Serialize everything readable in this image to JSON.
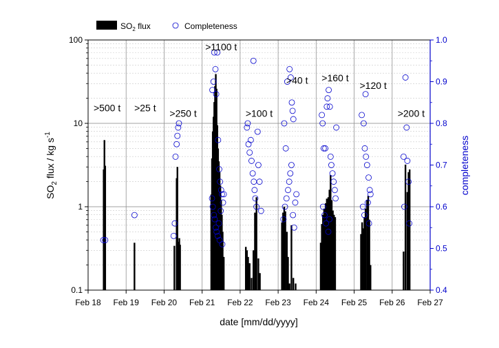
{
  "chart_data": {
    "type": "bar",
    "xlabel": "date [mm/dd/yyyy]",
    "ylabel": {
      "base": "SO",
      "sub": "2",
      "rest": " flux / kg s",
      "sup": "-1"
    },
    "y2label": "completeness",
    "yscale": "log",
    "ylim": [
      0.1,
      100
    ],
    "y2lim": [
      0.4,
      1.0
    ],
    "xlim": [
      "Feb 18",
      "Feb 27"
    ],
    "x_ticks": [
      "Feb 18",
      "Feb 19",
      "Feb 20",
      "Feb 21",
      "Feb 22",
      "Feb 23",
      "Feb 24",
      "Feb 25",
      "Feb 26",
      "Feb 27"
    ],
    "y_ticks": [
      "0.1",
      "1",
      "10",
      "100"
    ],
    "y2_ticks": [
      "0.4",
      "0.5",
      "0.6",
      "0.7",
      "0.8",
      "0.9",
      "1.0"
    ],
    "grid": true,
    "legend": {
      "placement": "top-left",
      "entries": [
        {
          "label_base": "SO",
          "label_sub": "2",
          "label_rest": " flux",
          "marker": "bar"
        },
        {
          "label": "Completeness",
          "marker": "circle"
        }
      ]
    },
    "daily_totals": [
      {
        "day": "Feb 18",
        "label": ">500 t"
      },
      {
        "day": "Feb 19",
        "label": ">25 t"
      },
      {
        "day": "Feb 20",
        "label": ">250 t"
      },
      {
        "day": "Feb 21",
        "label": ">1100 t"
      },
      {
        "day": "Feb 22",
        "label": ">100 t"
      },
      {
        "day": "Feb 23",
        "label": ">40 t"
      },
      {
        "day": "Feb 24",
        "label": ">160 t"
      },
      {
        "day": "Feb 25",
        "label": ">120 t"
      },
      {
        "day": "Feb 26",
        "label": ">200 t"
      }
    ],
    "series": [
      {
        "name": "SO2 flux",
        "color": "#000000",
        "points": [
          [
            18.41,
            2.8
          ],
          [
            18.43,
            6.3
          ],
          [
            18.45,
            3.1
          ],
          [
            19.22,
            0.37
          ],
          [
            20.27,
            0.34
          ],
          [
            20.33,
            2.2
          ],
          [
            20.35,
            3.0
          ],
          [
            20.37,
            0.38
          ],
          [
            20.4,
            0.42
          ],
          [
            20.42,
            0.35
          ],
          [
            21.24,
            1.4
          ],
          [
            21.26,
            3.8
          ],
          [
            21.28,
            8.0
          ],
          [
            21.3,
            12.0
          ],
          [
            21.32,
            18.0
          ],
          [
            21.34,
            28.0
          ],
          [
            21.36,
            39.0
          ],
          [
            21.38,
            26.0
          ],
          [
            21.4,
            9.5
          ],
          [
            21.42,
            5.0
          ],
          [
            21.44,
            3.5
          ],
          [
            21.46,
            2.6
          ],
          [
            21.48,
            1.8
          ],
          [
            21.5,
            1.2
          ],
          [
            21.52,
            0.8
          ],
          [
            21.54,
            0.5
          ],
          [
            21.57,
            0.25
          ],
          [
            22.15,
            0.33
          ],
          [
            22.18,
            0.3
          ],
          [
            22.21,
            0.25
          ],
          [
            22.25,
            0.21
          ],
          [
            22.3,
            0.14
          ],
          [
            22.35,
            0.3
          ],
          [
            22.39,
            0.85
          ],
          [
            22.43,
            1.3
          ],
          [
            22.48,
            0.24
          ],
          [
            22.52,
            0.16
          ],
          [
            23.1,
            0.65
          ],
          [
            23.13,
            0.85
          ],
          [
            23.16,
            1.0
          ],
          [
            23.19,
            0.88
          ],
          [
            23.23,
            0.5
          ],
          [
            23.26,
            0.25
          ],
          [
            23.3,
            0.12
          ],
          [
            23.35,
            0.6
          ],
          [
            23.4,
            0.14
          ],
          [
            23.46,
            0.12
          ],
          [
            24.12,
            0.37
          ],
          [
            24.15,
            0.62
          ],
          [
            24.18,
            0.8
          ],
          [
            24.21,
            0.95
          ],
          [
            24.25,
            1.1
          ],
          [
            24.28,
            1.25
          ],
          [
            24.32,
            1.3
          ],
          [
            24.35,
            1.6
          ],
          [
            24.38,
            2.4
          ],
          [
            24.41,
            1.2
          ],
          [
            24.44,
            0.9
          ],
          [
            24.47,
            0.8
          ],
          [
            24.5,
            0.75
          ],
          [
            25.18,
            0.47
          ],
          [
            25.21,
            0.65
          ],
          [
            25.24,
            0.55
          ],
          [
            25.27,
            0.75
          ],
          [
            25.3,
            0.95
          ],
          [
            25.34,
            1.2
          ],
          [
            25.37,
            1.35
          ],
          [
            25.4,
            0.7
          ],
          [
            25.43,
            0.2
          ],
          [
            26.3,
            0.29
          ],
          [
            26.35,
            3.2
          ],
          [
            26.4,
            1.5
          ],
          [
            26.43,
            2.6
          ],
          [
            26.46,
            2.8
          ]
        ]
      },
      {
        "name": "Completeness",
        "color": "#0000cc",
        "points": [
          [
            18.4,
            0.52
          ],
          [
            18.45,
            0.52
          ],
          [
            19.22,
            0.58
          ],
          [
            20.25,
            0.53
          ],
          [
            20.28,
            0.56
          ],
          [
            20.3,
            0.72
          ],
          [
            20.33,
            0.75
          ],
          [
            20.35,
            0.77
          ],
          [
            20.37,
            0.79
          ],
          [
            20.39,
            0.8
          ],
          [
            21.27,
            0.88
          ],
          [
            21.3,
            0.9
          ],
          [
            21.32,
            0.97
          ],
          [
            21.35,
            0.93
          ],
          [
            21.37,
            0.87
          ],
          [
            21.4,
            0.97
          ],
          [
            21.42,
            0.76
          ],
          [
            21.45,
            0.69
          ],
          [
            21.47,
            0.66
          ],
          [
            21.5,
            0.64
          ],
          [
            21.52,
            0.63
          ],
          [
            21.55,
            0.61
          ],
          [
            21.57,
            0.63
          ],
          [
            21.26,
            0.62
          ],
          [
            21.28,
            0.6
          ],
          [
            21.31,
            0.58
          ],
          [
            21.33,
            0.57
          ],
          [
            21.36,
            0.55
          ],
          [
            21.38,
            0.54
          ],
          [
            21.41,
            0.53
          ],
          [
            21.44,
            0.56
          ],
          [
            21.46,
            0.52
          ],
          [
            21.49,
            0.59
          ],
          [
            21.53,
            0.51
          ],
          [
            22.18,
            0.79
          ],
          [
            22.2,
            0.8
          ],
          [
            22.22,
            0.75
          ],
          [
            22.25,
            0.73
          ],
          [
            22.28,
            0.76
          ],
          [
            22.3,
            0.71
          ],
          [
            22.33,
            0.68
          ],
          [
            22.36,
            0.66
          ],
          [
            22.38,
            0.64
          ],
          [
            22.4,
            0.62
          ],
          [
            22.43,
            0.6
          ],
          [
            22.46,
            0.78
          ],
          [
            22.48,
            0.7
          ],
          [
            22.51,
            0.66
          ],
          [
            22.55,
            0.59
          ],
          [
            22.35,
            0.95
          ],
          [
            23.16,
            0.8
          ],
          [
            23.2,
            0.74
          ],
          [
            23.24,
            0.9
          ],
          [
            23.3,
            0.93
          ],
          [
            23.33,
            0.91
          ],
          [
            23.36,
            0.85
          ],
          [
            23.38,
            0.83
          ],
          [
            23.4,
            0.81
          ],
          [
            23.14,
            0.57
          ],
          [
            23.18,
            0.6
          ],
          [
            23.22,
            0.62
          ],
          [
            23.26,
            0.64
          ],
          [
            23.29,
            0.66
          ],
          [
            23.32,
            0.68
          ],
          [
            23.35,
            0.7
          ],
          [
            23.39,
            0.58
          ],
          [
            23.42,
            0.55
          ],
          [
            23.45,
            0.61
          ],
          [
            23.48,
            0.63
          ],
          [
            24.15,
            0.82
          ],
          [
            24.17,
            0.8
          ],
          [
            24.2,
            0.74
          ],
          [
            24.24,
            0.74
          ],
          [
            24.28,
            0.84
          ],
          [
            24.3,
            0.86
          ],
          [
            24.33,
            0.88
          ],
          [
            24.36,
            0.84
          ],
          [
            24.38,
            0.72
          ],
          [
            24.4,
            0.7
          ],
          [
            24.43,
            0.68
          ],
          [
            24.46,
            0.66
          ],
          [
            24.49,
            0.64
          ],
          [
            24.51,
            0.62
          ],
          [
            24.53,
            0.79
          ],
          [
            24.18,
            0.6
          ],
          [
            24.22,
            0.58
          ],
          [
            24.26,
            0.56
          ],
          [
            24.32,
            0.54
          ],
          [
            24.35,
            0.57
          ],
          [
            25.2,
            0.82
          ],
          [
            25.25,
            0.8
          ],
          [
            25.28,
            0.74
          ],
          [
            25.31,
            0.72
          ],
          [
            25.34,
            0.7
          ],
          [
            25.38,
            0.67
          ],
          [
            25.41,
            0.64
          ],
          [
            25.43,
            0.63
          ],
          [
            25.3,
            0.87
          ],
          [
            25.23,
            0.6
          ],
          [
            25.27,
            0.58
          ],
          [
            25.36,
            0.61
          ],
          [
            25.39,
            0.56
          ],
          [
            26.35,
            0.91
          ],
          [
            26.38,
            0.79
          ],
          [
            26.4,
            0.71
          ],
          [
            26.43,
            0.66
          ],
          [
            26.3,
            0.72
          ],
          [
            26.32,
            0.6
          ],
          [
            26.45,
            0.56
          ]
        ]
      }
    ]
  }
}
